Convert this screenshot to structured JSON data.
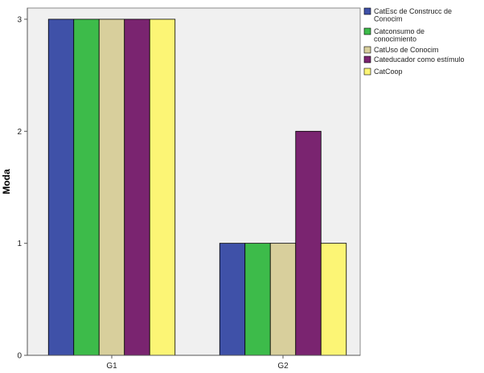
{
  "chart_data": {
    "type": "bar",
    "categories": [
      "G1",
      "G2"
    ],
    "series": [
      {
        "name": "CatEsc de Construcc de Conocim",
        "values": [
          3,
          1
        ],
        "color": "#3f51a8"
      },
      {
        "name": "Catconsumo de conocimiento",
        "values": [
          3,
          1
        ],
        "color": "#3dbb4a"
      },
      {
        "name": "CatUso de Conocim",
        "values": [
          3,
          1
        ],
        "color": "#d8cf9c"
      },
      {
        "name": "Cateducador como estímulo",
        "values": [
          3,
          2
        ],
        "color": "#7a2470"
      },
      {
        "name": "CatCoop",
        "values": [
          3,
          1
        ],
        "color": "#fcf575"
      }
    ],
    "legend_lines": [
      [
        "CatEsc de Construcc de",
        "Conocim"
      ],
      [
        "Catconsumo de",
        "conocimiento"
      ],
      [
        "CatUso de Conocim"
      ],
      [
        "Cateducador como estímulo"
      ],
      [
        "CatCoop"
      ]
    ],
    "ylabel": "Moda",
    "xlabel": "",
    "yticks": [
      0,
      1,
      2,
      3
    ],
    "ylim": [
      0,
      3.1
    ],
    "grid": false,
    "legend_position": "top-right",
    "plot_background": "#f0f0f0"
  }
}
